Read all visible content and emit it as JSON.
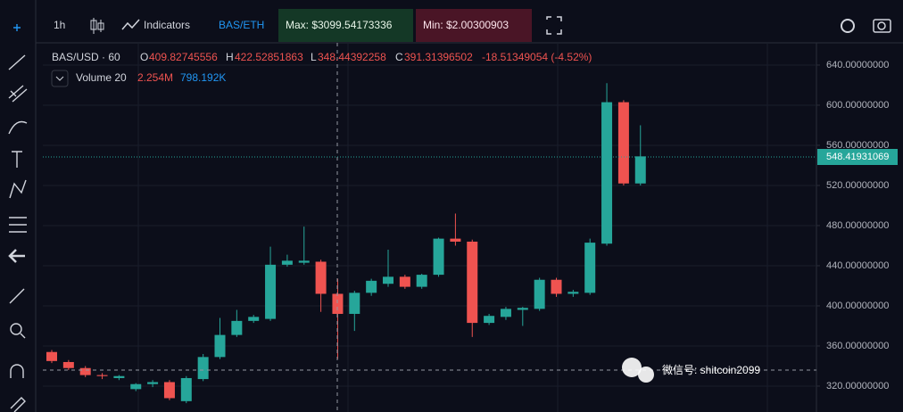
{
  "toolbar": {
    "interval": "1h",
    "indicators": "Indicators",
    "pair": "BAS/ETH",
    "max": "Max: $3099.54173336",
    "min": "Min: $2.00300903"
  },
  "legend": {
    "symbol": "BAS/USD · 60",
    "o_label": "O",
    "o": "409.82745556",
    "h_label": "H",
    "h": "422.52851863",
    "l_label": "L",
    "l": "348.44392258",
    "c_label": "C",
    "c": "391.31396502",
    "change": "-18.51349054 (-4.52%)",
    "volume": "Volume 20",
    "vol1": "2.254M",
    "vol2": "798.192K"
  },
  "watermark": "微信号: shitcoin2099",
  "chart_data": {
    "type": "candlestick",
    "up_color": "#26a69a",
    "down_color": "#ef5350",
    "ylim": [
      294.2,
      662.2
    ],
    "yticks": [
      {
        "value": 640,
        "label": "640.00000000"
      },
      {
        "value": 600,
        "label": "600.00000000"
      },
      {
        "value": 560,
        "label": "560.00000000"
      },
      {
        "value": 520,
        "label": "520.00000000"
      },
      {
        "value": 480,
        "label": "480.00000000"
      },
      {
        "value": 440,
        "label": "440.00000000"
      },
      {
        "value": 400,
        "label": "400.00000000"
      },
      {
        "value": 360,
        "label": "360.00000000"
      },
      {
        "value": 320,
        "label": "320.00000000"
      }
    ],
    "grid": true,
    "last_price": 548.41931069,
    "open": [
      354,
      344,
      338,
      331,
      328,
      317,
      322,
      324,
      305,
      327,
      349,
      371,
      385,
      387,
      441,
      443,
      444,
      412,
      392,
      413,
      422,
      429,
      419,
      431,
      467,
      464,
      383,
      389,
      396,
      397,
      426,
      412,
      413,
      462,
      603,
      522
    ],
    "high": [
      356,
      346,
      340,
      333,
      331,
      323,
      326,
      326,
      330,
      352,
      388,
      396,
      391,
      459,
      451,
      479,
      446,
      427,
      415,
      427,
      456,
      431,
      432,
      468,
      492,
      466,
      392,
      399,
      399,
      428,
      428,
      416,
      467,
      622,
      605,
      580
    ],
    "low": [
      343,
      336,
      329,
      327,
      326,
      315,
      319,
      306,
      303,
      325,
      347,
      369,
      383,
      385,
      439,
      441,
      394,
      347,
      375,
      410,
      419,
      417,
      417,
      429,
      460,
      369,
      381,
      386,
      380,
      395,
      409,
      409,
      411,
      460,
      520,
      520
    ],
    "close": [
      345,
      338,
      331,
      330,
      330,
      322,
      324,
      308,
      328,
      349,
      371,
      385,
      389,
      441,
      445,
      445,
      412,
      392,
      413,
      425,
      429,
      419,
      431,
      467,
      464,
      383,
      390,
      397,
      398,
      426,
      412,
      414,
      463,
      603,
      522,
      549
    ]
  }
}
